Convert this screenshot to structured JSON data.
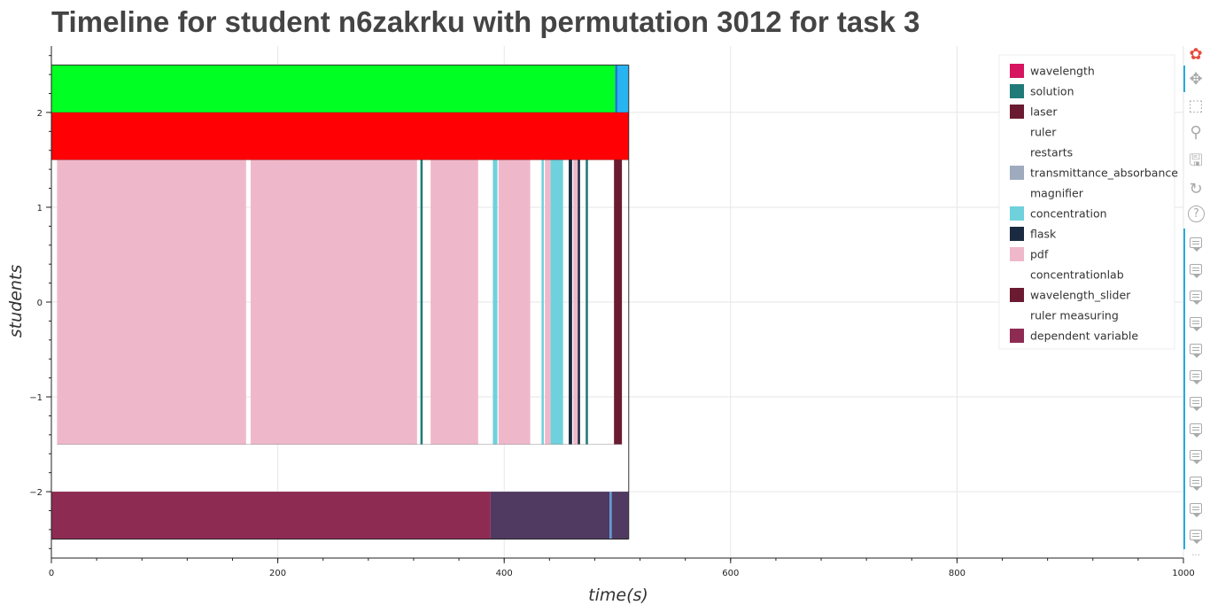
{
  "chart_data": {
    "type": "timeline",
    "title": "Timeline for student n6zakrku with permutation 3012 for task 3",
    "xlabel": "time(s)",
    "ylabel": "students",
    "xlim": [
      0,
      1000
    ],
    "ylim": [
      -2.7,
      2.7
    ],
    "x_ticks": [
      0,
      200,
      400,
      600,
      800,
      1000
    ],
    "y_ticks": [
      -2,
      -1,
      0,
      1,
      2
    ],
    "grid": true,
    "legend_position": "top-right",
    "legend": [
      {
        "label": "wavelength",
        "color": "#d6145f"
      },
      {
        "label": "solution",
        "color": "#1f7a78"
      },
      {
        "label": "laser",
        "color": "#6a1b31"
      },
      {
        "label": "ruler",
        "color": ""
      },
      {
        "label": "restarts",
        "color": ""
      },
      {
        "label": "transmittance_absorbance",
        "color": "#9eabbd"
      },
      {
        "label": "magnifier",
        "color": ""
      },
      {
        "label": "concentration",
        "color": "#6fd1dc"
      },
      {
        "label": "flask",
        "color": "#1a2a40"
      },
      {
        "label": "pdf",
        "color": "#efb8ca"
      },
      {
        "label": "concentrationlab",
        "color": ""
      },
      {
        "label": "wavelength_slider",
        "color": "#6a1b31"
      },
      {
        "label": "ruler measuring",
        "color": ""
      },
      {
        "label": "dependent variable",
        "color": "#8e2b52"
      }
    ],
    "rows": [
      {
        "y0": 2.0,
        "y1": 2.5,
        "segments": [
          {
            "start": 0,
            "end": 498,
            "color": "#00ff22"
          },
          {
            "start": 498,
            "end": 500,
            "color": "#1f77d4"
          },
          {
            "start": 500,
            "end": 510,
            "color": "#28b4f0"
          }
        ]
      },
      {
        "y0": 1.5,
        "y1": 2.0,
        "segments": [
          {
            "start": 0,
            "end": 510,
            "color": "#ff0004"
          }
        ]
      },
      {
        "y0": -1.5,
        "y1": 1.5,
        "segments": [
          {
            "start": 5,
            "end": 172,
            "color": "#efb8ca"
          },
          {
            "start": 176,
            "end": 323,
            "color": "#efb8ca"
          },
          {
            "start": 326,
            "end": 328,
            "color": "#1f7a78"
          },
          {
            "start": 335,
            "end": 377,
            "color": "#efb8ca"
          },
          {
            "start": 390,
            "end": 394,
            "color": "#6fd1dc"
          },
          {
            "start": 395,
            "end": 423,
            "color": "#efb8ca"
          },
          {
            "start": 433,
            "end": 435,
            "color": "#6fd1dc"
          },
          {
            "start": 436,
            "end": 441,
            "color": "#efb8ca"
          },
          {
            "start": 441,
            "end": 452,
            "color": "#6fd1dc"
          },
          {
            "start": 457,
            "end": 460,
            "color": "#1a2a40"
          },
          {
            "start": 461,
            "end": 465,
            "color": "#efb8ca"
          },
          {
            "start": 465,
            "end": 467,
            "color": "#1a2a40"
          },
          {
            "start": 472,
            "end": 474,
            "color": "#1f7a78"
          },
          {
            "start": 497,
            "end": 504,
            "color": "#6a1b31"
          }
        ]
      },
      {
        "y0": -2.5,
        "y1": -2.0,
        "segments": [
          {
            "start": 0,
            "end": 388,
            "color": "#8e2b52"
          },
          {
            "start": 388,
            "end": 493,
            "color": "#503a62"
          },
          {
            "start": 493,
            "end": 495,
            "color": "#5b9bd5"
          },
          {
            "start": 495,
            "end": 510,
            "color": "#503a62"
          }
        ]
      }
    ]
  },
  "toolbar": {
    "items": [
      {
        "name": "bokeh-logo-icon",
        "glyph": "✿"
      },
      {
        "name": "pan-tool-icon",
        "glyph": "✥"
      },
      {
        "name": "box-zoom-tool-icon",
        "glyph": "⬚"
      },
      {
        "name": "wheel-zoom-tool-icon",
        "glyph": "⚲"
      },
      {
        "name": "save-tool-icon",
        "glyph": "🖫"
      },
      {
        "name": "reset-tool-icon",
        "glyph": "↻"
      },
      {
        "name": "help-tool-icon",
        "glyph": "?"
      }
    ],
    "hover_tool_count": 12,
    "overflow_glyph": "···"
  },
  "colors": {
    "grid": "#e6e6e6",
    "axis": "#222222",
    "toolbar_active": "#26aae1"
  }
}
